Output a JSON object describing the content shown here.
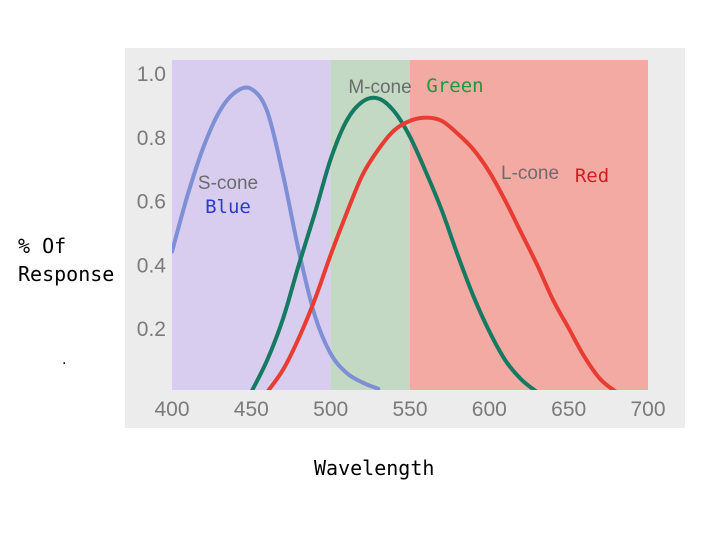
{
  "chart_data": {
    "type": "line",
    "xlabel": "Wavelength",
    "ylabel_lines": [
      "% Of",
      "Response"
    ],
    "footnote": ".",
    "xlim": [
      400,
      700
    ],
    "ylim": [
      0,
      1.0
    ],
    "x_ticks": [
      "400",
      "450",
      "500",
      "550",
      "600",
      "650",
      "700"
    ],
    "y_ticks": [
      "0.2",
      "0.4",
      "0.6",
      "0.8",
      "1.0"
    ],
    "regions": [
      {
        "name": "blue-region",
        "x_from": 400,
        "x_to": 500,
        "color": "#d8cdee"
      },
      {
        "name": "green-region",
        "x_from": 500,
        "x_to": 550,
        "color": "#c3d9c3"
      },
      {
        "name": "red-region",
        "x_from": 550,
        "x_to": 700,
        "color": "#f3aaa3"
      }
    ],
    "series": [
      {
        "name": "S-cone",
        "tag": "Blue",
        "color": "#7f8fd5",
        "tag_color": "#2a3cc8",
        "x": [
          400,
          410,
          420,
          430,
          440,
          450,
          460,
          470,
          480,
          490,
          500,
          510,
          520,
          530
        ],
        "y": [
          0.44,
          0.62,
          0.77,
          0.88,
          0.94,
          0.95,
          0.88,
          0.68,
          0.44,
          0.24,
          0.12,
          0.06,
          0.03,
          0.01
        ]
      },
      {
        "name": "M-cone",
        "tag": "Green",
        "color": "#167a63",
        "tag_color": "#1a9a3c",
        "x": [
          450,
          460,
          470,
          480,
          490,
          500,
          510,
          520,
          530,
          540,
          550,
          560,
          570,
          580,
          590,
          600,
          610,
          620,
          630
        ],
        "y": [
          0.0,
          0.1,
          0.23,
          0.4,
          0.56,
          0.73,
          0.85,
          0.91,
          0.92,
          0.88,
          0.8,
          0.69,
          0.57,
          0.43,
          0.3,
          0.19,
          0.1,
          0.04,
          0.0
        ]
      },
      {
        "name": "L-cone",
        "tag": "Red",
        "color": "#e83c33",
        "tag_color": "#d01f1f",
        "x": [
          460,
          470,
          480,
          490,
          500,
          510,
          520,
          530,
          540,
          550,
          560,
          570,
          580,
          590,
          600,
          610,
          620,
          630,
          640,
          650,
          660,
          670,
          680
        ],
        "y": [
          0.0,
          0.07,
          0.17,
          0.29,
          0.43,
          0.56,
          0.68,
          0.76,
          0.82,
          0.85,
          0.86,
          0.85,
          0.81,
          0.76,
          0.69,
          0.6,
          0.5,
          0.4,
          0.29,
          0.2,
          0.11,
          0.04,
          0.0
        ]
      }
    ]
  }
}
